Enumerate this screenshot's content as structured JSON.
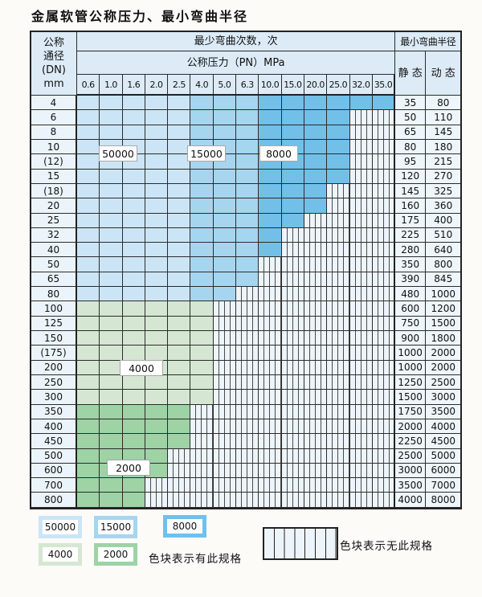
{
  "title": "金属软管公称压力、最小弯曲半径",
  "colors": {
    "c50000": "#cbe5f6",
    "c15000": "#a6d5ef",
    "c8000": "#72c0e8",
    "c4000": "#d5e7d2",
    "c2000": "#9dd3a5",
    "header_bg": "#dcebf6"
  },
  "table": {
    "header": {
      "dn_lines": [
        "公称",
        "通径",
        "(DN)",
        "mm"
      ],
      "bend_cycles": "最少弯曲次数，次",
      "pressure": "公称压力（PN）MPa",
      "min_radius": "最小弯曲半径",
      "static": "静 态",
      "dynamic": "动 态",
      "pressures": [
        "0.6",
        "1.0",
        "1.6",
        "2.0",
        "2.5",
        "4.0",
        "5.0",
        "6.3",
        "10.0",
        "15.0",
        "20.0",
        "25.0",
        "32.0",
        "35.0"
      ]
    },
    "zone_labels": [
      "50000",
      "15000",
      "8000",
      "4000",
      "2000"
    ],
    "rows": [
      {
        "dn": "4",
        "type": "blue",
        "colored": 14,
        "static": "35",
        "dynamic": "80"
      },
      {
        "dn": "6",
        "type": "blue",
        "colored": 12,
        "static": "50",
        "dynamic": "110"
      },
      {
        "dn": "8",
        "type": "blue",
        "colored": 12,
        "static": "65",
        "dynamic": "145"
      },
      {
        "dn": "10",
        "type": "blue",
        "colored": 12,
        "static": "80",
        "dynamic": "180"
      },
      {
        "dn": "(12)",
        "type": "blue",
        "colored": 12,
        "static": "95",
        "dynamic": "215"
      },
      {
        "dn": "15",
        "type": "blue",
        "colored": 12,
        "static": "120",
        "dynamic": "270"
      },
      {
        "dn": "(18)",
        "type": "blue",
        "colored": 11,
        "static": "145",
        "dynamic": "325"
      },
      {
        "dn": "20",
        "type": "blue",
        "colored": 11,
        "static": "160",
        "dynamic": "360"
      },
      {
        "dn": "25",
        "type": "blue",
        "colored": 10,
        "static": "175",
        "dynamic": "400"
      },
      {
        "dn": "32",
        "type": "blue",
        "colored": 9,
        "static": "225",
        "dynamic": "510"
      },
      {
        "dn": "40",
        "type": "blue",
        "colored": 9,
        "static": "280",
        "dynamic": "640"
      },
      {
        "dn": "50",
        "type": "blue",
        "colored": 8,
        "static": "350",
        "dynamic": "800"
      },
      {
        "dn": "65",
        "type": "blue",
        "colored": 8,
        "static": "390",
        "dynamic": "845"
      },
      {
        "dn": "80",
        "type": "blue",
        "colored": 7,
        "static": "480",
        "dynamic": "1000"
      },
      {
        "dn": "100",
        "type": "g4",
        "colored": 6,
        "static": "600",
        "dynamic": "1200"
      },
      {
        "dn": "125",
        "type": "g4",
        "colored": 6,
        "static": "750",
        "dynamic": "1500"
      },
      {
        "dn": "150",
        "type": "g4",
        "colored": 6,
        "static": "900",
        "dynamic": "1800"
      },
      {
        "dn": "(175)",
        "type": "g4",
        "colored": 6,
        "static": "1000",
        "dynamic": "2000"
      },
      {
        "dn": "200",
        "type": "g4",
        "colored": 6,
        "static": "1000",
        "dynamic": "2000"
      },
      {
        "dn": "250",
        "type": "g4",
        "colored": 6,
        "static": "1250",
        "dynamic": "2500"
      },
      {
        "dn": "300",
        "type": "g4",
        "colored": 6,
        "static": "1500",
        "dynamic": "3000"
      },
      {
        "dn": "350",
        "type": "g2",
        "colored": 5,
        "static": "1750",
        "dynamic": "3500"
      },
      {
        "dn": "400",
        "type": "g2",
        "colored": 5,
        "static": "2000",
        "dynamic": "4000"
      },
      {
        "dn": "450",
        "type": "g2",
        "colored": 5,
        "static": "2250",
        "dynamic": "4500"
      },
      {
        "dn": "500",
        "type": "g2",
        "colored": 4,
        "static": "2500",
        "dynamic": "5000"
      },
      {
        "dn": "600",
        "type": "g2",
        "colored": 4,
        "static": "3000",
        "dynamic": "6000"
      },
      {
        "dn": "700",
        "type": "g2",
        "colored": 3,
        "static": "3500",
        "dynamic": "7000"
      },
      {
        "dn": "800",
        "type": "g2",
        "colored": 3,
        "static": "4000",
        "dynamic": "8000"
      }
    ]
  },
  "legend": {
    "swatches": [
      {
        "label": "50000",
        "color_key": "c50000"
      },
      {
        "label": "15000",
        "color_key": "c15000"
      },
      {
        "label": "8000",
        "color_key": "c8000"
      },
      {
        "label": "4000",
        "color_key": "c4000"
      },
      {
        "label": "2000",
        "color_key": "c2000"
      }
    ],
    "has_spec": "色块表示有此规格",
    "no_spec": "色块表示无此规格"
  }
}
